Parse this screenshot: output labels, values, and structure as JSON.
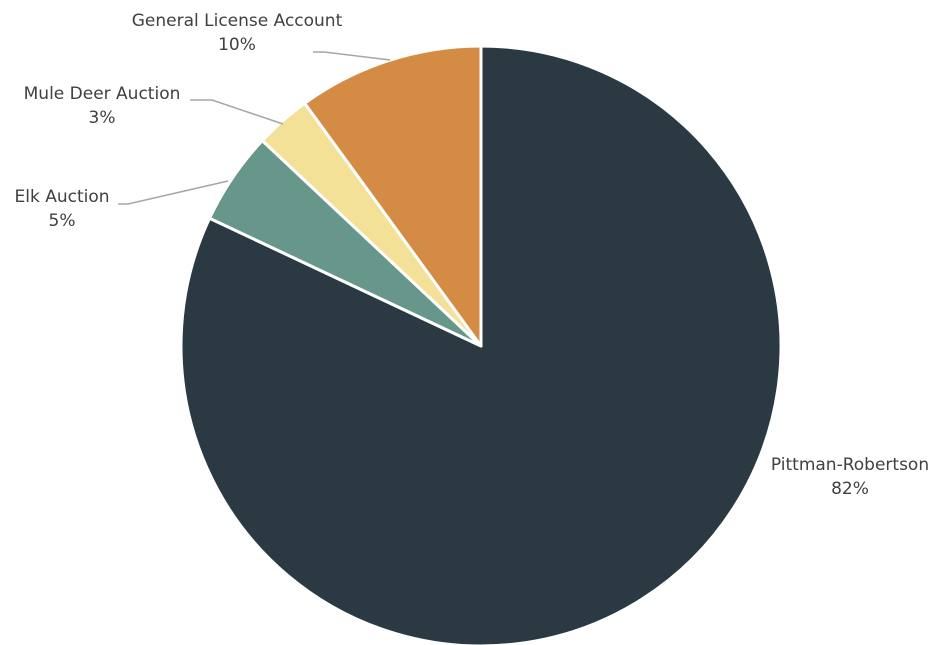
{
  "chart_data": {
    "type": "pie",
    "title": "",
    "start_angle_deg": 0,
    "direction": "clockwise",
    "slices": [
      {
        "label": "Pittman-Robertson",
        "value": 82,
        "display": "82%",
        "color": "#2b3a42"
      },
      {
        "label": "Elk Auction",
        "value": 5,
        "display": "5%",
        "color": "#67978a"
      },
      {
        "label": "Mule Deer Auction",
        "value": 3,
        "display": "3%",
        "color": "#f2e196"
      },
      {
        "label": "General License Account",
        "value": 10,
        "display": "10%",
        "color": "#d48c45"
      }
    ]
  }
}
